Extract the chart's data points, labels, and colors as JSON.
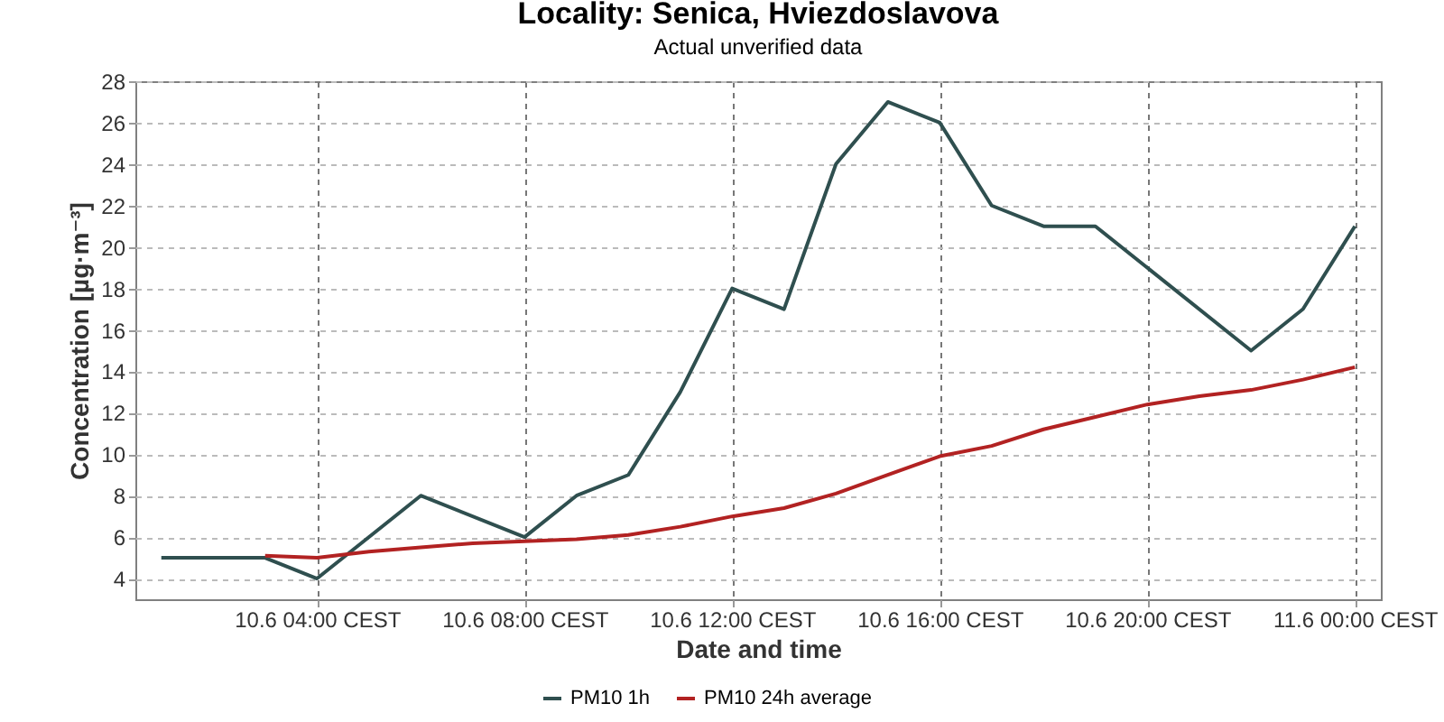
{
  "chart_data": {
    "type": "line",
    "title": "Locality: Senica, Hviezdoslavova",
    "subtitle": "Actual unverified data",
    "xlabel": "Date and time",
    "ylabel": "Concentration [µg·m⁻³]",
    "xlim": [
      "--06-10T00:30",
      "--06-11T00:30"
    ],
    "xticks": [
      {
        "value": "--06-10T04:00",
        "label": "10.6 04:00 CEST"
      },
      {
        "value": "--06-10T08:00",
        "label": "10.6 08:00 CEST"
      },
      {
        "value": "--06-10T12:00",
        "label": "10.6 12:00 CEST"
      },
      {
        "value": "--06-10T16:00",
        "label": "10.6 16:00 CEST"
      },
      {
        "value": "--06-10T20:00",
        "label": "10.6 20:00 CEST"
      },
      {
        "value": "--06-11T00:00",
        "label": "11.6 00:00 CEST"
      }
    ],
    "ylim": [
      3,
      28
    ],
    "yticks": [
      4,
      6,
      8,
      10,
      12,
      14,
      16,
      18,
      20,
      22,
      24,
      26,
      28
    ],
    "grid": true,
    "legend": "bottom",
    "marker": "none",
    "line_style": "solid",
    "series": [
      {
        "name": "PM10 1h",
        "color": "#2f4f4f",
        "x": [
          "--06-10T01:00",
          "--06-10T02:00",
          "--06-10T03:00",
          "--06-10T04:00",
          "--06-10T06:00",
          "--06-10T08:00",
          "--06-10T09:00",
          "--06-10T10:00",
          "--06-10T11:00",
          "--06-10T12:00",
          "--06-10T13:00",
          "--06-10T14:00",
          "--06-10T15:00",
          "--06-10T16:00",
          "--06-10T17:00",
          "--06-10T18:00",
          "--06-10T19:00",
          "--06-10T22:00",
          "--06-10T23:00",
          "--06-11T00:00"
        ],
        "values": [
          5,
          5,
          5,
          4,
          8,
          6,
          8,
          9,
          13,
          18,
          17,
          24,
          27,
          26,
          22,
          21,
          21,
          15,
          17,
          21
        ]
      },
      {
        "name": "PM10 24h average",
        "color": "#b22222",
        "x": [
          "--06-10T03:00",
          "--06-10T04:00",
          "--06-10T05:00",
          "--06-10T06:00",
          "--06-10T07:00",
          "--06-10T08:00",
          "--06-10T09:00",
          "--06-10T10:00",
          "--06-10T11:00",
          "--06-10T12:00",
          "--06-10T13:00",
          "--06-10T14:00",
          "--06-10T15:00",
          "--06-10T16:00",
          "--06-10T17:00",
          "--06-10T18:00",
          "--06-10T19:00",
          "--06-10T20:00",
          "--06-10T21:00",
          "--06-10T22:00",
          "--06-10T23:00",
          "--06-11T00:00"
        ],
        "values": [
          5.1,
          5.0,
          5.3,
          5.5,
          5.7,
          5.8,
          5.9,
          6.1,
          6.5,
          7.0,
          7.4,
          8.1,
          9.0,
          9.9,
          10.4,
          11.2,
          11.8,
          12.4,
          12.8,
          13.1,
          13.6,
          14.2
        ]
      }
    ]
  }
}
